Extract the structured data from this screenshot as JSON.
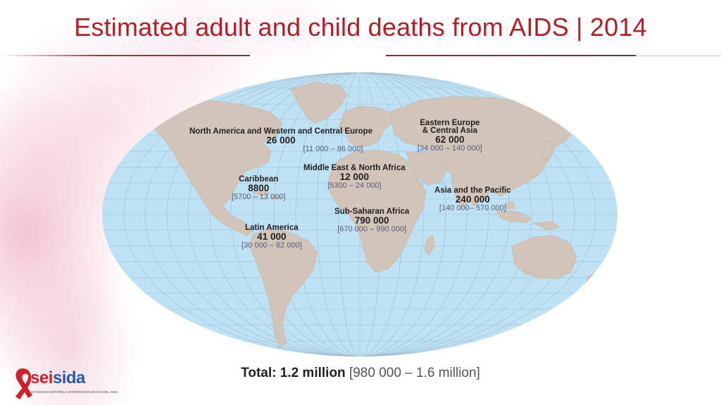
{
  "slide": {
    "title": "Estimated adult and child deaths from AIDS  |  2014",
    "total_label": "Total: 1.2 million",
    "total_range": "[980 000 – 1.6 million]"
  },
  "regions": [
    {
      "name": "North America and Western and Central Europe",
      "value": "26 000",
      "range": "[11 000 – 86 000]"
    },
    {
      "name": "Eastern Europe\n& Central Asia",
      "value": "62 000",
      "range": "[34 000 – 140 000]"
    },
    {
      "name": "Middle East & North Africa",
      "value": "12 000",
      "range": "[5300 – 24 000]"
    },
    {
      "name": "Caribbean",
      "value": "8800",
      "range": "[5700 – 13 000]"
    },
    {
      "name": "Asia and the Pacific",
      "value": "240 000",
      "range": "[140 000– 570 000]"
    },
    {
      "name": "Sub-Saharan Africa",
      "value": "790 000",
      "range": "[670 000 – 990 000]"
    },
    {
      "name": "Latin America",
      "value": "41 000",
      "range": "[30 000 – 82 000]"
    }
  ],
  "logo": {
    "name_part1": "sei",
    "name_part2": "sida",
    "subtitle": "SOCIEDAD ESPAÑOLA INTERDISCIPLINARIA DEL SIDA"
  },
  "colors": {
    "title": "#b01e28",
    "ocean": "#bfe1f4",
    "land": "#d3c4b9",
    "ribbon": "#d0202a"
  }
}
